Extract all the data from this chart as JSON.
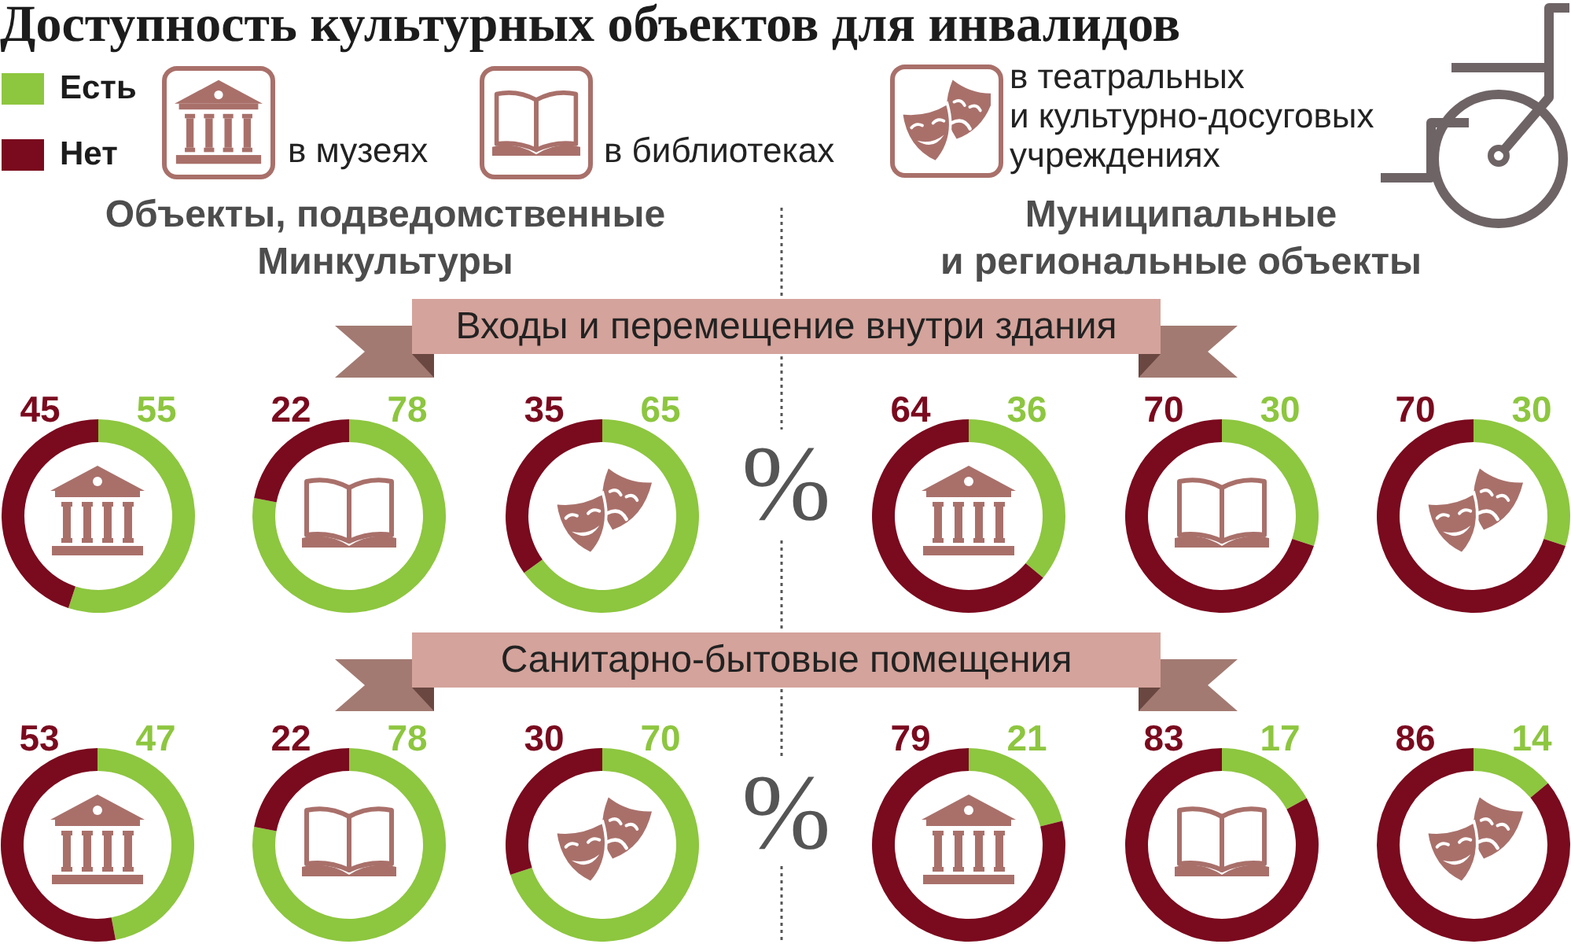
{
  "chart_data": [
    {
      "type": "other",
      "title": "Доступность культурных объектов для инвалидов",
      "annotations": [
        "в музеях",
        "в библиотеках",
        "в театральных\nи культурно-досуговых\nучреждениях",
        "Объекты, подведомственные\nМинкультуры",
        "Муниципальные\nи региональные объекты",
        "Входы и перемещение внутри здания",
        "Санитарно-бытовые помещения",
        "%",
        "%"
      ]
    },
    {
      "type": "donut",
      "categories": [
        "Есть",
        "Нет"
      ],
      "values": [
        55,
        45
      ],
      "colors": [
        "#8dc63f",
        "#7a0a1e"
      ],
      "data_labels": true,
      "legend": "top left"
    },
    {
      "type": "donut",
      "values": [
        78,
        22
      ],
      "colors": [
        "#8dc63f",
        "#7a0a1e"
      ],
      "data_labels": true
    },
    {
      "type": "donut",
      "values": [
        65,
        35
      ],
      "colors": [
        "#8dc63f",
        "#7a0a1e"
      ],
      "data_labels": true
    },
    {
      "type": "donut",
      "values": [
        36,
        64
      ],
      "colors": [
        "#8dc63f",
        "#7a0a1e"
      ],
      "data_labels": true
    },
    {
      "type": "donut",
      "values": [
        30,
        70
      ],
      "colors": [
        "#8dc63f",
        "#7a0a1e"
      ],
      "data_labels": true
    },
    {
      "type": "donut",
      "values": [
        30,
        70
      ],
      "colors": [
        "#8dc63f",
        "#7a0a1e"
      ],
      "data_labels": true
    },
    {
      "type": "donut",
      "values": [
        47,
        53
      ],
      "colors": [
        "#8dc63f",
        "#7a0a1e"
      ],
      "data_labels": true
    },
    {
      "type": "donut",
      "values": [
        78,
        22
      ],
      "colors": [
        "#8dc63f",
        "#7a0a1e"
      ],
      "data_labels": true
    },
    {
      "type": "donut",
      "values": [
        70,
        30
      ],
      "colors": [
        "#8dc63f",
        "#7a0a1e"
      ],
      "data_labels": true
    },
    {
      "type": "donut",
      "values": [
        21,
        79
      ],
      "colors": [
        "#8dc63f",
        "#7a0a1e"
      ],
      "data_labels": true
    },
    {
      "type": "donut",
      "values": [
        17,
        83
      ],
      "colors": [
        "#8dc63f",
        "#7a0a1e"
      ],
      "data_labels": true
    },
    {
      "type": "donut",
      "values": [
        14,
        86
      ],
      "colors": [
        "#8dc63f",
        "#7a0a1e"
      ],
      "data_labels": true
    }
  ]
}
